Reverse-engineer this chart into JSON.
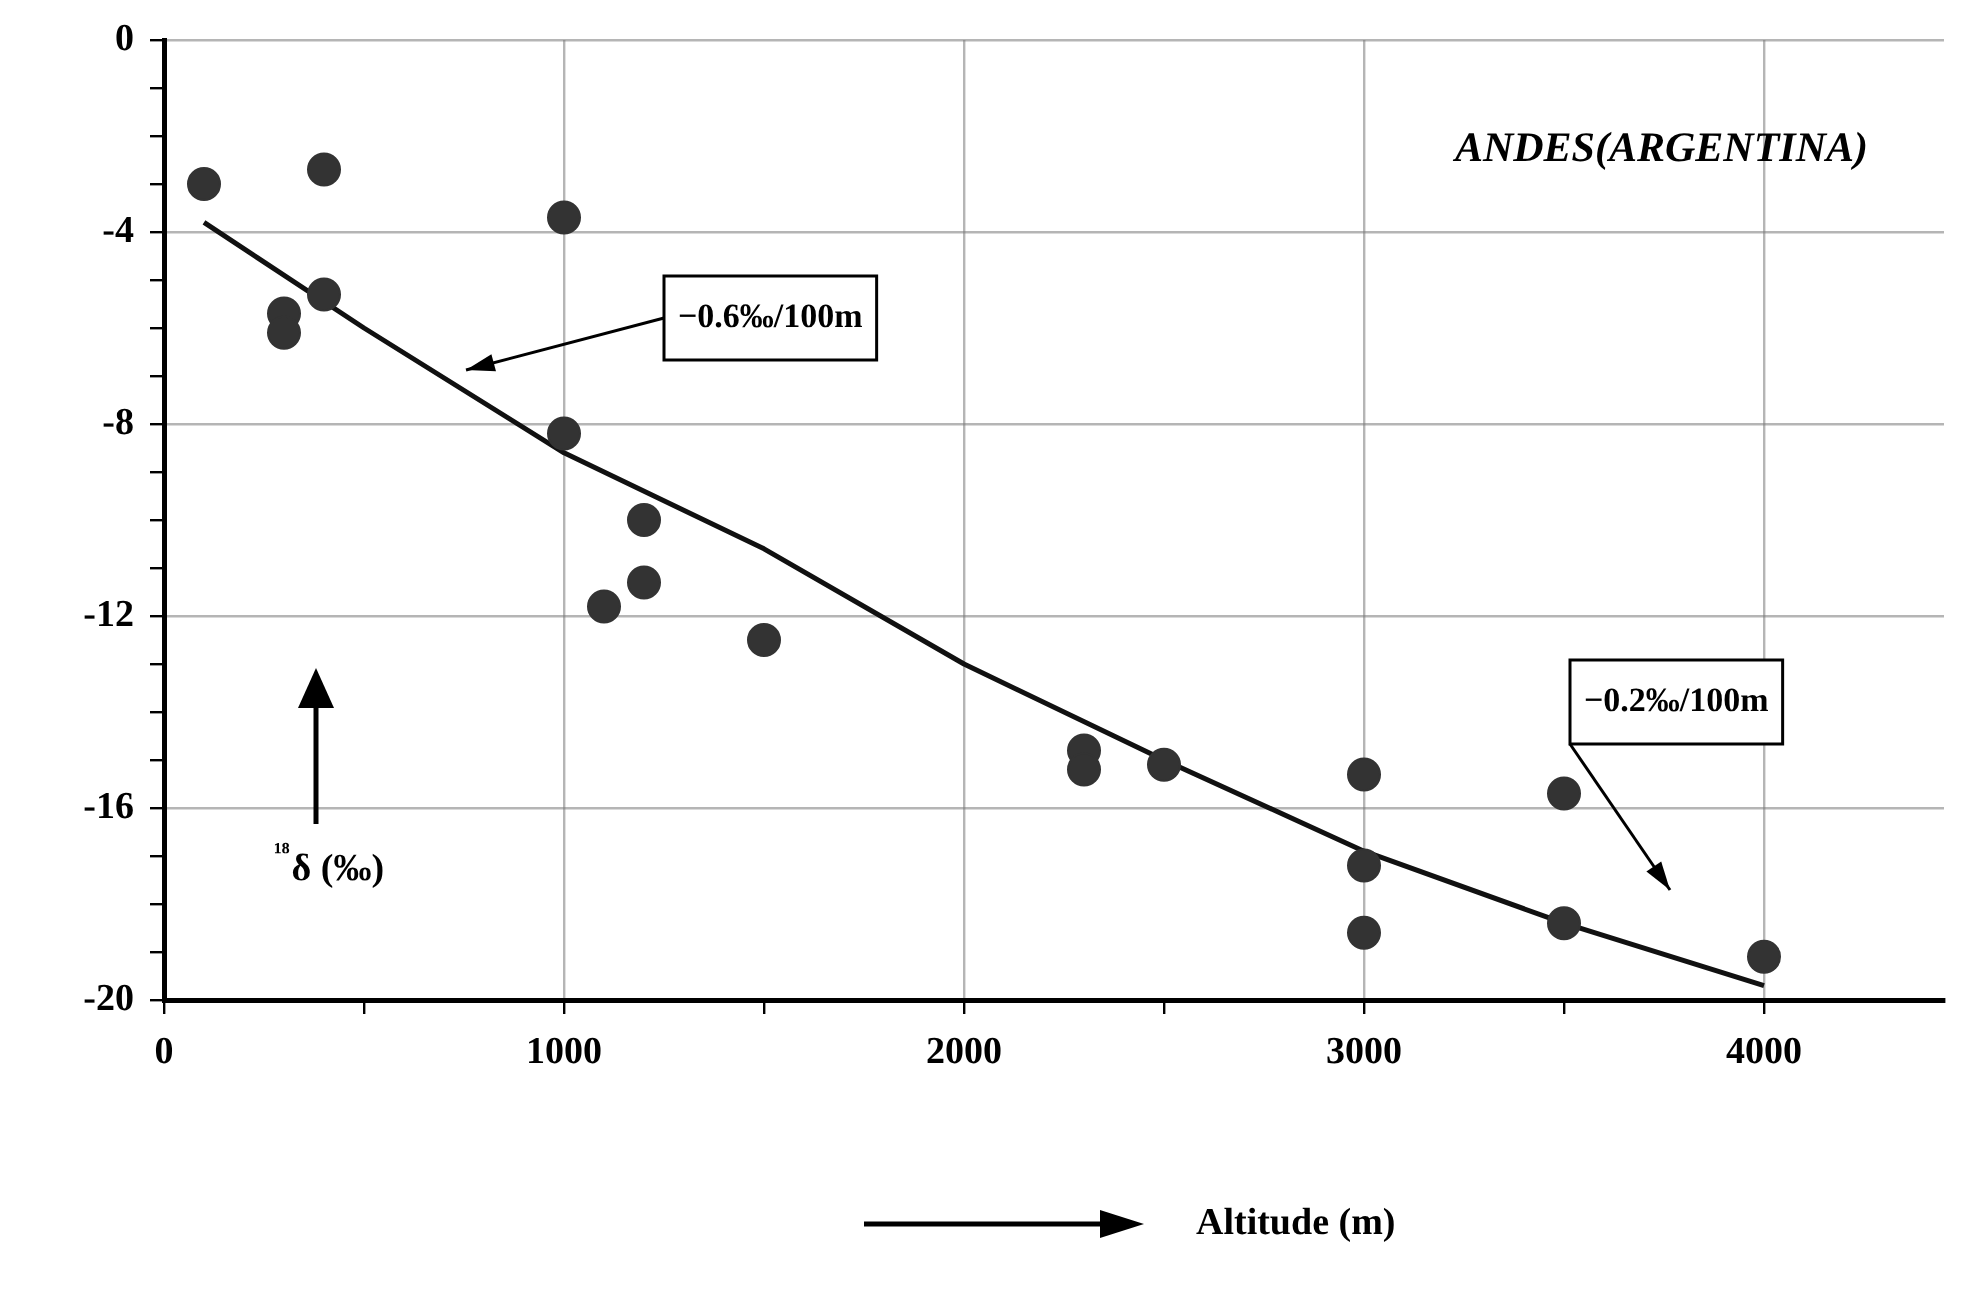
{
  "chart_data": {
    "type": "scatter",
    "xlabel": "Altitude (m)",
    "ylabel": "¹⁸δ (‰)",
    "series": [
      {
        "color": "#333333",
        "marker": "circle",
        "x": [
          100,
          400,
          400,
          300,
          300,
          1000,
          1000,
          1200,
          1200,
          1100,
          1500,
          2300,
          2300,
          2500,
          3000,
          3000,
          3000,
          3500,
          3500,
          4000
        ],
        "values": [
          -3.0,
          -2.7,
          -5.3,
          -5.7,
          -6.1,
          -3.7,
          -8.2,
          -10.0,
          -11.3,
          -11.8,
          -12.5,
          -14.8,
          -15.2,
          -15.1,
          -15.3,
          -17.2,
          -18.6,
          -15.7,
          -18.4,
          -19.1
        ]
      },
      {
        "type": "line",
        "color": "#111111",
        "marker": "none",
        "line_style": "solid",
        "x": [
          100,
          500,
          1000,
          1500,
          2000,
          2500,
          3000,
          3500,
          4000
        ],
        "values": [
          -3.8,
          -6.0,
          -8.6,
          -10.6,
          -13.0,
          -15.0,
          -16.9,
          -18.4,
          -19.7
        ]
      }
    ],
    "xlim": [
      0,
      4450
    ],
    "ylim": [
      -20,
      0
    ],
    "xticks": [
      0,
      {
        "value": 500,
        "label": null
      },
      1000,
      {
        "value": 1500,
        "label": null
      },
      2000,
      {
        "value": 2500,
        "label": null
      },
      3000,
      {
        "value": 3500,
        "label": null
      },
      4000
    ],
    "yticks": [
      -20,
      {
        "value": -19,
        "label": null
      },
      {
        "value": -18,
        "label": null
      },
      {
        "value": -17,
        "label": null
      },
      -16,
      {
        "value": -15,
        "label": null
      },
      {
        "value": -14,
        "label": null
      },
      {
        "value": -13,
        "label": null
      },
      -12,
      {
        "value": -11,
        "label": null
      },
      {
        "value": -10,
        "label": null
      },
      {
        "value": -9,
        "label": null
      },
      -8,
      {
        "value": -7,
        "label": null
      },
      {
        "value": -6,
        "label": null
      },
      {
        "value": -5,
        "label": null
      },
      -4,
      {
        "value": -3,
        "label": null
      },
      {
        "value": -2,
        "label": null
      },
      {
        "value": -1,
        "label": null
      },
      0
    ],
    "grid": true,
    "legend": false,
    "annotations": [
      "ANDES(ARGENTINA)",
      "−0.6‰/100m",
      "−0.2‰/100m"
    ]
  }
}
